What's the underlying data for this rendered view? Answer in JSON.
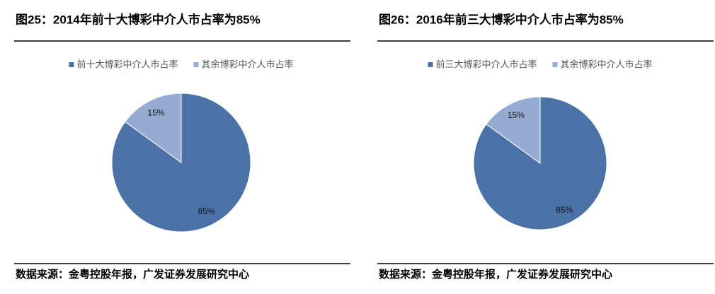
{
  "chart_data": [
    {
      "type": "pie",
      "title": "图25：2014年前十大博彩中介人市占率为85%",
      "categories": [
        "前十大博彩中介人市占率",
        "其余博彩中介人市占率"
      ],
      "values": [
        85,
        15
      ],
      "value_labels": [
        "85%",
        "15%"
      ],
      "colors": [
        "#4a72a6",
        "#95abd2"
      ],
      "source": "数据来源：金粤控股年报，广发证券发展研究中心"
    },
    {
      "type": "pie",
      "title": "图26：2016年前三大博彩中介人市占率为85%",
      "categories": [
        "前三大博彩中介人市占率",
        "其余博彩中介人市占率"
      ],
      "values": [
        85,
        15
      ],
      "value_labels": [
        "85%",
        "15%"
      ],
      "colors": [
        "#4a72a6",
        "#95abd2"
      ],
      "source": "数据来源：金粤控股年报，广发证券发展研究中心"
    }
  ]
}
